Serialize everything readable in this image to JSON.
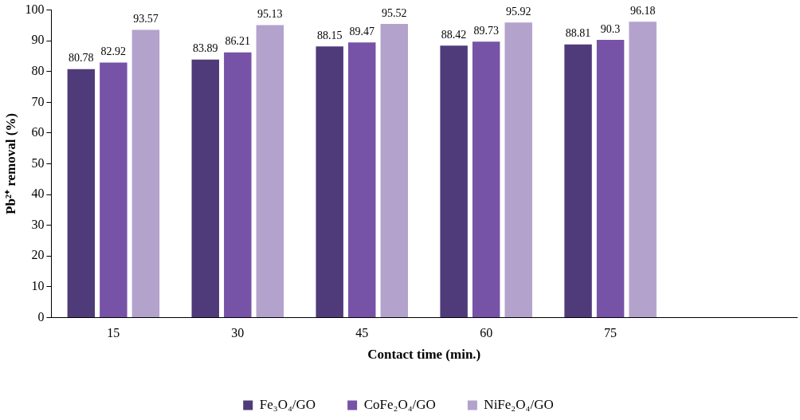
{
  "chart_data": {
    "type": "bar",
    "xlabel": "Contact time (min.)",
    "ylabel": "Pb²⁺ removal (%)",
    "categories": [
      "15",
      "30",
      "45",
      "60",
      "75",
      null
    ],
    "series": [
      {
        "name": "Fe₃O₄/GO",
        "color": "#4f3b79",
        "values": [
          80.78,
          83.89,
          88.15,
          88.42,
          88.81,
          null
        ]
      },
      {
        "name": "CoFe₂O₄/GO",
        "color": "#7653a6",
        "values": [
          82.92,
          86.21,
          89.47,
          89.73,
          90.3,
          null
        ]
      },
      {
        "name": "NiFe₂O₄/GO",
        "color": "#b2a2cc",
        "values": [
          93.57,
          95.13,
          95.52,
          95.92,
          96.18,
          null
        ]
      }
    ],
    "ylim": [
      0,
      100
    ],
    "yticks": [
      0,
      10,
      20,
      30,
      40,
      50,
      60,
      70,
      80,
      90,
      100
    ],
    "grid": false,
    "legend": "bottom",
    "data_labels": true
  }
}
